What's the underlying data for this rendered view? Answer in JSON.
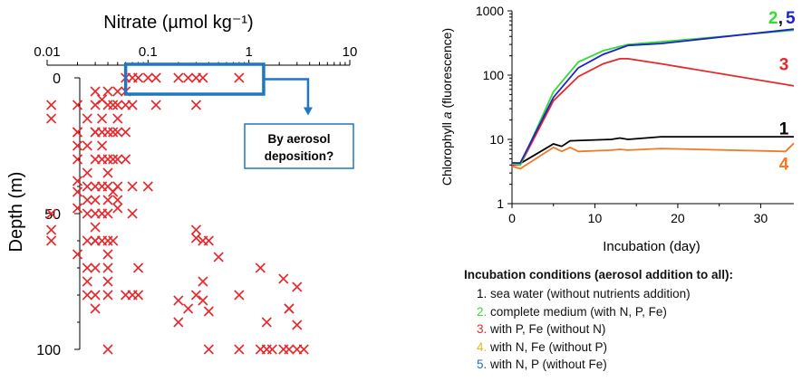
{
  "chart_data": [
    {
      "type": "scatter",
      "title": "Nitrate (µmol kg⁻¹)",
      "xlabel": "Nitrate (µmol kg⁻¹)",
      "ylabel": "Depth (m)",
      "x_scale": "log",
      "xlim": [
        0.01,
        10
      ],
      "ylim": [
        100,
        0
      ],
      "x_ticks": [
        "0.01",
        "0.1",
        "1",
        "10"
      ],
      "y_ticks": [
        "0",
        "50",
        "100"
      ],
      "marker": "x",
      "marker_color": "#e8272b",
      "points": [
        [
          0.011,
          10
        ],
        [
          0.011,
          15
        ],
        [
          0.011,
          50
        ],
        [
          0.011,
          56
        ],
        [
          0.011,
          60
        ],
        [
          0.02,
          10
        ],
        [
          0.02,
          20
        ],
        [
          0.02,
          20
        ],
        [
          0.02,
          25
        ],
        [
          0.02,
          30
        ],
        [
          0.02,
          38
        ],
        [
          0.02,
          42
        ],
        [
          0.02,
          48
        ],
        [
          0.02,
          65
        ],
        [
          0.025,
          15
        ],
        [
          0.025,
          25
        ],
        [
          0.025,
          35
        ],
        [
          0.025,
          40
        ],
        [
          0.025,
          45
        ],
        [
          0.025,
          50
        ],
        [
          0.025,
          60
        ],
        [
          0.025,
          70
        ],
        [
          0.025,
          75
        ],
        [
          0.025,
          80
        ],
        [
          0.03,
          5
        ],
        [
          0.03,
          10
        ],
        [
          0.03,
          20
        ],
        [
          0.03,
          20
        ],
        [
          0.03,
          30
        ],
        [
          0.03,
          40
        ],
        [
          0.03,
          45
        ],
        [
          0.03,
          50
        ],
        [
          0.03,
          55
        ],
        [
          0.03,
          60
        ],
        [
          0.03,
          60
        ],
        [
          0.03,
          70
        ],
        [
          0.03,
          80
        ],
        [
          0.03,
          85
        ],
        [
          0.035,
          8
        ],
        [
          0.035,
          15
        ],
        [
          0.035,
          20
        ],
        [
          0.035,
          25
        ],
        [
          0.035,
          30
        ],
        [
          0.035,
          40
        ],
        [
          0.035,
          50
        ],
        [
          0.035,
          60
        ],
        [
          0.04,
          5
        ],
        [
          0.04,
          10
        ],
        [
          0.04,
          20
        ],
        [
          0.04,
          30
        ],
        [
          0.04,
          35
        ],
        [
          0.04,
          40
        ],
        [
          0.04,
          45
        ],
        [
          0.04,
          50
        ],
        [
          0.04,
          60
        ],
        [
          0.04,
          65
        ],
        [
          0.04,
          70
        ],
        [
          0.04,
          75
        ],
        [
          0.04,
          80
        ],
        [
          0.04,
          100
        ],
        [
          0.045,
          10
        ],
        [
          0.045,
          20
        ],
        [
          0.045,
          30
        ],
        [
          0.045,
          42
        ],
        [
          0.045,
          60
        ],
        [
          0.05,
          5
        ],
        [
          0.05,
          10
        ],
        [
          0.05,
          15
        ],
        [
          0.05,
          20
        ],
        [
          0.05,
          30
        ],
        [
          0.05,
          40
        ],
        [
          0.05,
          45
        ],
        [
          0.05,
          48
        ],
        [
          0.06,
          0
        ],
        [
          0.06,
          5
        ],
        [
          0.06,
          10
        ],
        [
          0.06,
          20
        ],
        [
          0.06,
          30
        ],
        [
          0.06,
          80
        ],
        [
          0.07,
          0
        ],
        [
          0.07,
          10
        ],
        [
          0.07,
          40
        ],
        [
          0.07,
          50
        ],
        [
          0.07,
          80
        ],
        [
          0.08,
          0
        ],
        [
          0.08,
          70
        ],
        [
          0.08,
          80
        ],
        [
          0.1,
          0
        ],
        [
          0.1,
          40
        ],
        [
          0.12,
          0
        ],
        [
          0.12,
          10
        ],
        [
          0.2,
          0
        ],
        [
          0.2,
          82
        ],
        [
          0.2,
          90
        ],
        [
          0.25,
          0
        ],
        [
          0.25,
          85
        ],
        [
          0.3,
          0
        ],
        [
          0.3,
          10
        ],
        [
          0.3,
          56
        ],
        [
          0.3,
          59
        ],
        [
          0.3,
          80
        ],
        [
          0.35,
          0
        ],
        [
          0.35,
          60
        ],
        [
          0.35,
          75
        ],
        [
          0.35,
          82
        ],
        [
          0.4,
          60
        ],
        [
          0.4,
          86
        ],
        [
          0.4,
          100
        ],
        [
          0.5,
          66
        ],
        [
          0.8,
          0
        ],
        [
          0.8,
          80
        ],
        [
          0.8,
          100
        ],
        [
          1.3,
          70
        ],
        [
          1.3,
          100
        ],
        [
          1.5,
          90
        ],
        [
          1.5,
          100
        ],
        [
          1.7,
          100
        ],
        [
          2.2,
          74
        ],
        [
          2.2,
          100
        ],
        [
          2.5,
          85
        ],
        [
          2.5,
          85
        ],
        [
          2.5,
          100
        ],
        [
          3.0,
          77
        ],
        [
          3.0,
          91
        ],
        [
          3.0,
          100
        ],
        [
          3.5,
          100
        ]
      ],
      "annotation": {
        "text_line1": "By aerosol",
        "text_line2": "deposition?",
        "box_color": "#1f77c4",
        "x_range": [
          0.06,
          1.4
        ],
        "y_range": [
          -5,
          6
        ]
      }
    },
    {
      "type": "line",
      "xlabel": "Incubation (day)",
      "ylabel_main": "Chlorophyll ",
      "ylabel_italic": "a",
      "ylabel_tail": " (fluorescence)",
      "y_scale": "log",
      "xlim": [
        0,
        34
      ],
      "ylim": [
        1,
        1000
      ],
      "x_ticks": [
        "0",
        "10",
        "20",
        "30"
      ],
      "y_ticks": [
        "1",
        "10",
        "100",
        "1000"
      ],
      "series": [
        {
          "name": "1",
          "color": "#000000",
          "x": [
            0,
            1,
            5,
            6,
            7,
            12,
            13,
            14,
            18,
            34
          ],
          "y": [
            4.3,
            4.2,
            8.5,
            7.8,
            9.5,
            10,
            10.5,
            10,
            11,
            11
          ]
        },
        {
          "name": "2",
          "color": "#33dd33",
          "x": [
            0,
            1,
            5,
            8,
            11,
            14,
            18,
            34
          ],
          "y": [
            4.2,
            4.0,
            55,
            160,
            240,
            300,
            330,
            500
          ]
        },
        {
          "name": "3",
          "color": "#e8272b",
          "x": [
            0,
            1,
            5,
            8,
            11,
            13,
            14,
            18,
            34
          ],
          "y": [
            4.0,
            4.0,
            40,
            95,
            150,
            180,
            180,
            150,
            68
          ]
        },
        {
          "name": "4",
          "color": "#f07a28",
          "x": [
            0,
            1,
            5,
            6,
            7,
            8,
            12,
            13,
            14,
            18,
            33,
            34
          ],
          "y": [
            3.8,
            3.5,
            7.5,
            6.5,
            7.5,
            6.5,
            6.8,
            7.0,
            6.8,
            7.2,
            6.5,
            8.7
          ]
        },
        {
          "name": "5",
          "color": "#1e22c8",
          "x": [
            0,
            1,
            5,
            8,
            11,
            14,
            18,
            34
          ],
          "y": [
            4.3,
            4.3,
            45,
            130,
            210,
            290,
            310,
            520
          ]
        }
      ],
      "series_labels": [
        {
          "text": "2",
          "color": "#33dd33",
          "anchor_day": 31.5,
          "anchor_val": 800
        },
        {
          "text": ",",
          "color": "#111111",
          "anchor_day": 32.4,
          "anchor_val": 800
        },
        {
          "text": "5",
          "color": "#1e22c8",
          "anchor_day": 33.6,
          "anchor_val": 800
        },
        {
          "text": "3",
          "color": "#e8272b",
          "anchor_day": 32.8,
          "anchor_val": 150
        },
        {
          "text": "1",
          "color": "#000000",
          "anchor_day": 32.8,
          "anchor_val": 15
        },
        {
          "text": "4",
          "color": "#f07a28",
          "anchor_day": 32.8,
          "anchor_val": 4.2
        }
      ]
    }
  ],
  "legend": {
    "title": "Incubation conditions (aerosol addition to all):",
    "items": [
      {
        "num": "1.",
        "num_color": "#000000",
        "text": " sea water (without nutrients addition)"
      },
      {
        "num": "2.",
        "num_color": "#33dd33",
        "text": " complete medium (with N, P, Fe)"
      },
      {
        "num": "3.",
        "num_color": "#e8272b",
        "text": " with P, Fe (without N)"
      },
      {
        "num": "4.",
        "num_color": "#f0b41e",
        "text": " with N, Fe (without P)"
      },
      {
        "num": "5.",
        "num_color": "#1e6ec8",
        "text": " with N, P (without Fe)"
      }
    ]
  }
}
